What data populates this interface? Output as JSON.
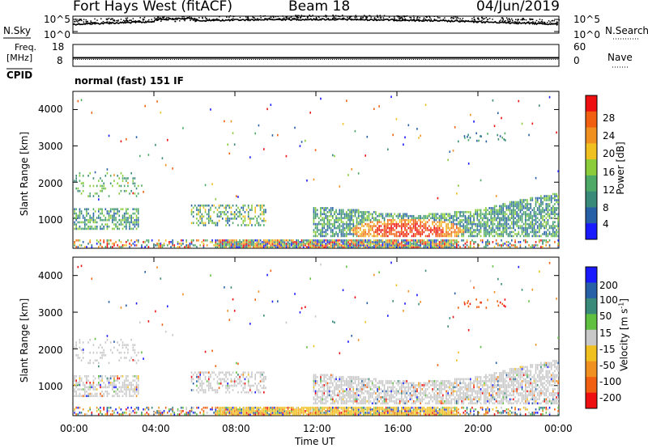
{
  "header": {
    "title": "Fort Hays West (fitACF)",
    "beam": "Beam 18",
    "date": "04/Jun/2019"
  },
  "noise_panel": {
    "left_label": "N.Sky",
    "right_label": "N.Search",
    "ticks": [
      "10^5",
      "10^0"
    ]
  },
  "freq_panel": {
    "left_label_1": "Freq.",
    "left_label_2": "[MHz]",
    "right_label": "Nave",
    "left_ticks": [
      "18",
      "8"
    ],
    "right_ticks": [
      "60",
      "0"
    ],
    "cpid_label": "CPID"
  },
  "mode_text": "normal (fast) 151 IF",
  "colors": {
    "power": [
      "#1a1aff",
      "#2860a8",
      "#3a8a7a",
      "#4caa66",
      "#8acc3a",
      "#f0c020",
      "#f09020",
      "#f06010",
      "#ee1010"
    ],
    "velocity": [
      "#ee1010",
      "#f06010",
      "#f09020",
      "#f0c020",
      "#c8c8c8",
      "#60c040",
      "#3a8a7a",
      "#2860a8",
      "#1a1aff"
    ],
    "ground": "#c8c8c8"
  },
  "chart_data": [
    {
      "type": "heatmap",
      "title": "",
      "ylabel": "Slant Range [km]",
      "xlabel": "",
      "ylim": [
        180,
        4500
      ],
      "xlim": [
        0,
        24
      ],
      "y_ticks": [
        "4000",
        "3000",
        "2000",
        "1000"
      ],
      "y_tick_values": [
        4000,
        3000,
        2000,
        1000
      ],
      "colorbar": {
        "label": "Power [dB]",
        "ticks": [
          "28",
          "24",
          "20",
          "16",
          "12",
          "8",
          "4"
        ],
        "range": [
          0,
          32
        ]
      }
    },
    {
      "type": "heatmap",
      "title": "",
      "ylabel": "Slant Range [km]",
      "xlabel": "Time UT",
      "ylim": [
        180,
        4500
      ],
      "xlim": [
        0,
        24
      ],
      "y_ticks": [
        "4000",
        "3000",
        "2000",
        "1000"
      ],
      "y_tick_values": [
        4000,
        3000,
        2000,
        1000
      ],
      "x_ticks": [
        "00:00",
        "04:00",
        "08:00",
        "12:00",
        "16:00",
        "20:00",
        "00:00"
      ],
      "x_tick_values": [
        0,
        4,
        8,
        12,
        16,
        20,
        24
      ],
      "colorbar": {
        "label": "Velocity [m s",
        "label_sup": "-1",
        "label_end": "]",
        "ticks": [
          "200",
          "100",
          "50",
          "15",
          "-15",
          "-50",
          "-100",
          "-200"
        ]
      }
    }
  ]
}
